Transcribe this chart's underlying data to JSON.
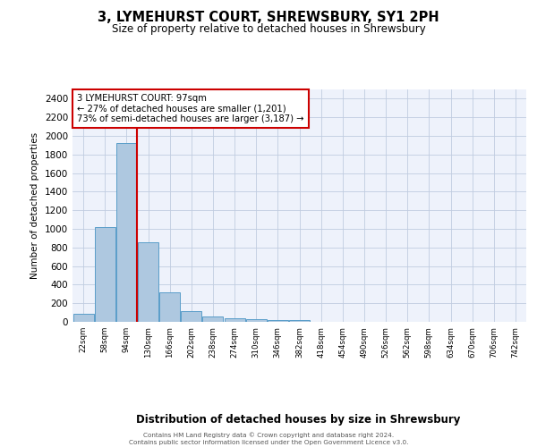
{
  "title": "3, LYMEHURST COURT, SHREWSBURY, SY1 2PH",
  "subtitle": "Size of property relative to detached houses in Shrewsbury",
  "xlabel": "Distribution of detached houses by size in Shrewsbury",
  "ylabel": "Number of detached properties",
  "bin_labels": [
    "22sqm",
    "58sqm",
    "94sqm",
    "130sqm",
    "166sqm",
    "202sqm",
    "238sqm",
    "274sqm",
    "310sqm",
    "346sqm",
    "382sqm",
    "418sqm",
    "454sqm",
    "490sqm",
    "526sqm",
    "562sqm",
    "598sqm",
    "634sqm",
    "670sqm",
    "706sqm",
    "742sqm"
  ],
  "bar_values": [
    90,
    1020,
    1920,
    860,
    320,
    120,
    55,
    35,
    25,
    15,
    20,
    0,
    0,
    0,
    0,
    0,
    0,
    0,
    0,
    0,
    0
  ],
  "bar_color": "#aec8e0",
  "bar_edge_color": "#5a9ec9",
  "red_line_bin": 2,
  "red_line_color": "#cc0000",
  "annotation_text": "3 LYMEHURST COURT: 97sqm\n← 27% of detached houses are smaller (1,201)\n73% of semi-detached houses are larger (3,187) →",
  "annotation_box_color": "#ffffff",
  "annotation_box_edge": "#cc0000",
  "ylim": [
    0,
    2500
  ],
  "yticks": [
    0,
    200,
    400,
    600,
    800,
    1000,
    1200,
    1400,
    1600,
    1800,
    2000,
    2200,
    2400
  ],
  "footer": "Contains HM Land Registry data © Crown copyright and database right 2024.\nContains public sector information licensed under the Open Government Licence v3.0.",
  "plot_bg_color": "#eef2fb"
}
